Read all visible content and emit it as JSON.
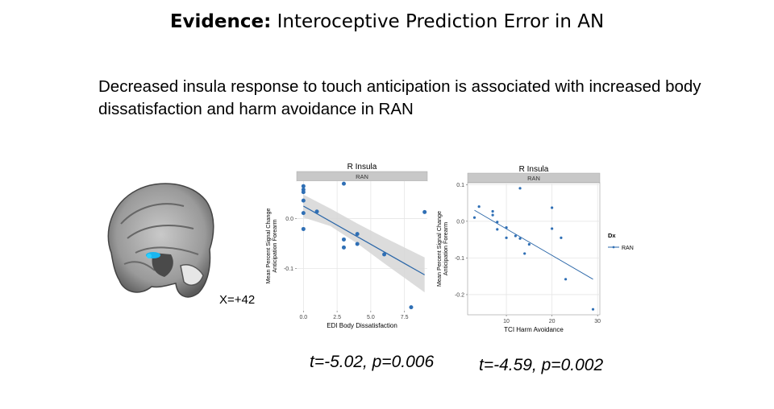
{
  "slide": {
    "title_bold": "Evidence:",
    "title_rest": " Interoceptive Prediction Error in AN",
    "subtitle": "Decreased insula response to touch anticipation is associated with increased body dissatisfaction and harm avoidance in RAN",
    "brain_label": "X=+42",
    "stat_left": "t=-5.02, p=0.006",
    "stat_right": "t=-4.59, p=0.002"
  },
  "colors": {
    "point": "#2f6fb5",
    "line": "#2a66a8",
    "ribbon": "#d6d6d6",
    "strip": "#c8c8c8",
    "grid": "#e6e6e6",
    "highlight": "#19b6f0"
  },
  "chart_data": [
    {
      "type": "scatter",
      "title": "R Insula",
      "facet": "RAN",
      "xlabel": "EDI Body Dissatisfaction",
      "ylabel": "Mean Percent Signal Change Anticipation Forearm",
      "xlim": [
        -0.5,
        9.2
      ],
      "ylim": [
        -0.185,
        0.075
      ],
      "xticks": [
        0.0,
        2.5,
        5.0,
        7.5
      ],
      "xtick_labels": [
        "0.0",
        "2.5",
        "5.0",
        "7.5"
      ],
      "yticks": [
        0.0,
        -0.1
      ],
      "ytick_labels": [
        "0.0",
        "-0.1"
      ],
      "grid": true,
      "points": [
        {
          "x": 0,
          "y": 0.065
        },
        {
          "x": 0,
          "y": 0.058
        },
        {
          "x": 0,
          "y": 0.053
        },
        {
          "x": 0,
          "y": 0.036
        },
        {
          "x": 0,
          "y": 0.011
        },
        {
          "x": 0,
          "y": -0.021
        },
        {
          "x": 1,
          "y": 0.014
        },
        {
          "x": 3,
          "y": 0.07
        },
        {
          "x": 3,
          "y": -0.042
        },
        {
          "x": 3,
          "y": -0.058
        },
        {
          "x": 4,
          "y": -0.031
        },
        {
          "x": 4,
          "y": -0.051
        },
        {
          "x": 6,
          "y": -0.072
        },
        {
          "x": 8,
          "y": -0.178
        },
        {
          "x": 9,
          "y": 0.013
        }
      ],
      "fit": {
        "x": [
          0,
          9
        ],
        "y": [
          0.025,
          -0.113
        ]
      },
      "ribbon": {
        "x": [
          0,
          2,
          4,
          6,
          9
        ],
        "lower": [
          0.002,
          -0.015,
          -0.05,
          -0.09,
          -0.148
        ],
        "upper": [
          0.048,
          0.02,
          -0.01,
          -0.038,
          -0.078
        ]
      }
    },
    {
      "type": "scatter",
      "title": "R Insula",
      "facet": "RAN",
      "xlabel": "TCI Harm Avoidance",
      "ylabel": "Mean Percent Signal Change Anticipation Forearm",
      "legend_title": "Dx",
      "legend_position": "right",
      "series": [
        {
          "name": "RAN"
        }
      ],
      "xlim": [
        1.5,
        30.5
      ],
      "ylim": [
        -0.255,
        0.105
      ],
      "xticks": [
        10,
        20,
        30
      ],
      "xtick_labels": [
        "10",
        "20",
        "30"
      ],
      "yticks": [
        0.1,
        0.0,
        -0.1,
        -0.2
      ],
      "ytick_labels": [
        "0.1",
        "0.0",
        "-0.1",
        "-0.2"
      ],
      "grid": true,
      "points": [
        {
          "x": 3,
          "y": 0.01
        },
        {
          "x": 4,
          "y": 0.04
        },
        {
          "x": 7,
          "y": 0.027
        },
        {
          "x": 7,
          "y": 0.017
        },
        {
          "x": 8,
          "y": -0.002
        },
        {
          "x": 8,
          "y": -0.022
        },
        {
          "x": 10,
          "y": -0.017
        },
        {
          "x": 10,
          "y": -0.045
        },
        {
          "x": 12,
          "y": -0.04
        },
        {
          "x": 13,
          "y": 0.09
        },
        {
          "x": 13,
          "y": -0.047
        },
        {
          "x": 14,
          "y": -0.088
        },
        {
          "x": 15,
          "y": -0.063
        },
        {
          "x": 20,
          "y": 0.037
        },
        {
          "x": 20,
          "y": -0.02
        },
        {
          "x": 22,
          "y": -0.045
        },
        {
          "x": 23,
          "y": -0.158
        },
        {
          "x": 29,
          "y": -0.24
        }
      ],
      "fit": {
        "x": [
          3,
          29
        ],
        "y": [
          0.03,
          -0.158
        ]
      }
    }
  ]
}
